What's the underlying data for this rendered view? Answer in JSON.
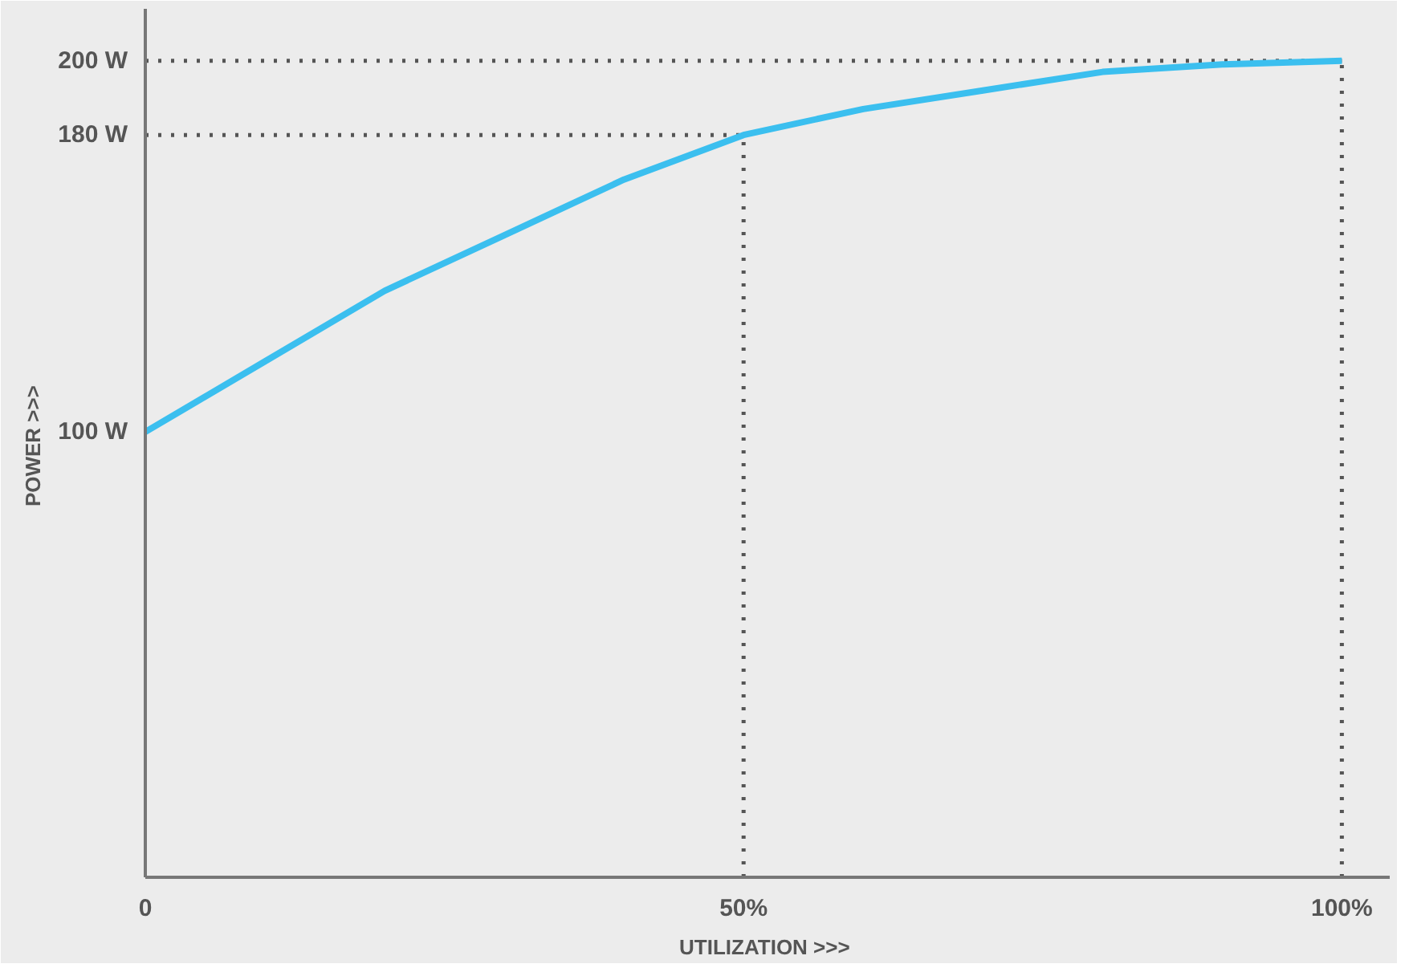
{
  "chart_data": {
    "type": "line",
    "xlabel": "UTILIZATION  >>>",
    "ylabel": "POWER  >>>",
    "x": [
      0,
      10,
      20,
      30,
      40,
      50,
      60,
      70,
      80,
      90,
      100
    ],
    "series": [
      {
        "color": "#3bbfef",
        "values": [
          100,
          119,
          138,
          153,
          168,
          180,
          187,
          192,
          197,
          199,
          200
        ]
      }
    ],
    "xlim": [
      0,
      104
    ],
    "ylim": [
      -20,
      214
    ],
    "xticks": [
      {
        "value": 0,
        "label": "0"
      },
      {
        "value": 50,
        "label": "50%"
      },
      {
        "value": 100,
        "label": "100%"
      }
    ],
    "yticks": [
      {
        "value": 100,
        "label": "100 W"
      },
      {
        "value": 180,
        "label": "180 W"
      },
      {
        "value": 200,
        "label": "200 W"
      }
    ],
    "ref_lines": [
      {
        "axis": "y",
        "value": 200,
        "color": "#555555",
        "line_style": "dotted"
      },
      {
        "axis": "y",
        "value": 180,
        "color": "#555555",
        "line_style": "dotted"
      },
      {
        "axis": "x",
        "value": 50,
        "color": "#555555",
        "line_style": "dotted"
      },
      {
        "axis": "x",
        "value": 100,
        "color": "#555555",
        "line_style": "dotted"
      }
    ],
    "grid": false,
    "marker": "none",
    "line_style": "solid"
  }
}
